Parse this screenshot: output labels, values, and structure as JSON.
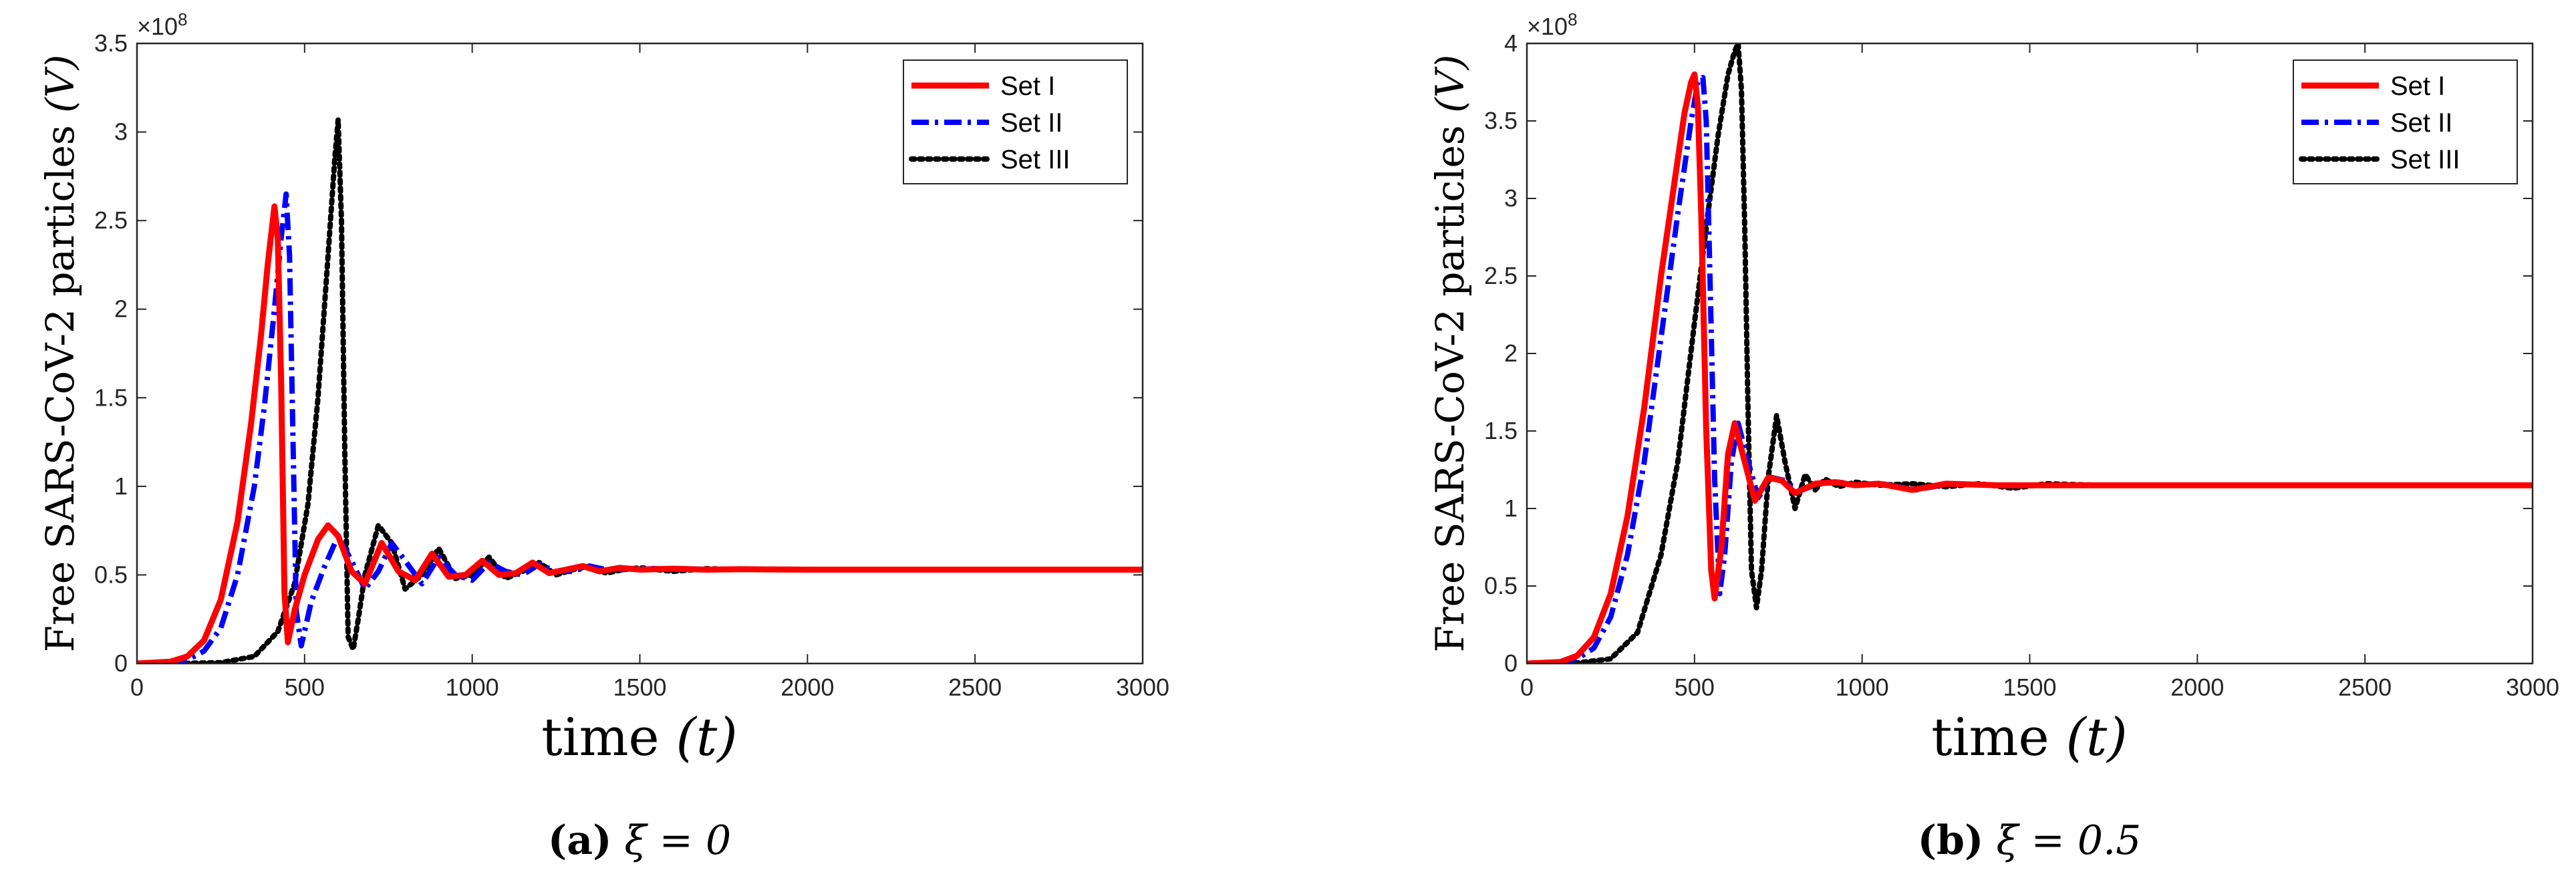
{
  "chart_data": [
    {
      "type": "line",
      "panel": "a",
      "xlabel_text": "time",
      "xlabel_var": "(t)",
      "ylabel_text": "Free SARS-CoV-2 particles",
      "ylabel_var": "(V)",
      "xlim": [
        0,
        3000
      ],
      "ylim": [
        0,
        3.5
      ],
      "xticks": [
        0,
        500,
        1000,
        1500,
        2000,
        2500,
        3000
      ],
      "yticks": [
        0,
        0.5,
        1,
        1.5,
        2,
        2.5,
        3,
        3.5
      ],
      "yticklabels": [
        "0",
        "0.5",
        "1",
        "1.5",
        "2",
        "2.5",
        "3",
        "3.5"
      ],
      "y_multiplier": "×10",
      "y_exponent": "8",
      "legend_position": "top-right",
      "caption_label": "(a)",
      "caption_expr": "ξ = 0",
      "series": [
        {
          "name": "Set I",
          "color": "#ff0000",
          "style": "solid",
          "x": [
            0,
            100,
            150,
            200,
            250,
            300,
            340,
            370,
            390,
            410,
            420,
            430,
            440,
            450,
            470,
            500,
            540,
            570,
            600,
            640,
            680,
            730,
            780,
            830,
            880,
            930,
            980,
            1030,
            1080,
            1130,
            1180,
            1230,
            1280,
            1330,
            1380,
            1440,
            1500,
            1600,
            1700,
            1800,
            2000,
            2500,
            3000
          ],
          "values": [
            0.0,
            0.01,
            0.04,
            0.13,
            0.36,
            0.8,
            1.35,
            1.85,
            2.25,
            2.58,
            2.4,
            1.6,
            0.4,
            0.12,
            0.3,
            0.5,
            0.7,
            0.78,
            0.72,
            0.52,
            0.45,
            0.68,
            0.52,
            0.47,
            0.62,
            0.49,
            0.5,
            0.58,
            0.5,
            0.51,
            0.57,
            0.51,
            0.53,
            0.55,
            0.52,
            0.54,
            0.53,
            0.535,
            0.53,
            0.532,
            0.53,
            0.53,
            0.53
          ]
        },
        {
          "name": "Set II",
          "color": "#0000ff",
          "style": "dashdot",
          "x": [
            0,
            100,
            150,
            200,
            250,
            300,
            350,
            380,
            410,
            430,
            445,
            455,
            465,
            475,
            490,
            520,
            560,
            600,
            640,
            680,
            720,
            760,
            800,
            850,
            900,
            950,
            1000,
            1050,
            1100,
            1150,
            1200,
            1250,
            1300,
            1350,
            1400,
            1450,
            1500,
            1600,
            1700,
            1800,
            2000,
            2500,
            3000
          ],
          "values": [
            0.0,
            0.005,
            0.02,
            0.07,
            0.2,
            0.5,
            1.0,
            1.45,
            2.0,
            2.4,
            2.65,
            2.3,
            1.3,
            0.3,
            0.1,
            0.35,
            0.55,
            0.72,
            0.58,
            0.42,
            0.52,
            0.68,
            0.58,
            0.45,
            0.6,
            0.5,
            0.47,
            0.57,
            0.52,
            0.5,
            0.56,
            0.52,
            0.52,
            0.55,
            0.53,
            0.53,
            0.54,
            0.53,
            0.532,
            0.53,
            0.53,
            0.53,
            0.53
          ]
        },
        {
          "name": "Set III",
          "color": "#000000",
          "style": "dotted",
          "x": [
            0,
            150,
            250,
            350,
            420,
            470,
            510,
            540,
            570,
            590,
            600,
            610,
            620,
            630,
            645,
            660,
            680,
            720,
            760,
            800,
            850,
            900,
            950,
            1000,
            1050,
            1100,
            1150,
            1200,
            1250,
            1300,
            1350,
            1400,
            1450,
            1500,
            1600,
            1700,
            1800,
            2000,
            2500,
            3000
          ],
          "values": [
            0.0,
            0.001,
            0.005,
            0.04,
            0.18,
            0.45,
            0.9,
            1.5,
            2.3,
            2.85,
            3.07,
            2.5,
            1.2,
            0.15,
            0.08,
            0.25,
            0.5,
            0.78,
            0.68,
            0.42,
            0.5,
            0.65,
            0.48,
            0.5,
            0.6,
            0.48,
            0.52,
            0.57,
            0.5,
            0.53,
            0.55,
            0.51,
            0.53,
            0.54,
            0.52,
            0.535,
            0.53,
            0.53,
            0.53,
            0.53
          ]
        }
      ]
    },
    {
      "type": "line",
      "panel": "b",
      "xlabel_text": "time",
      "xlabel_var": "(t)",
      "ylabel_text": "Free SARS-CoV-2 particles",
      "ylabel_var": "(V)",
      "xlim": [
        0,
        3000
      ],
      "ylim": [
        0,
        4
      ],
      "xticks": [
        0,
        500,
        1000,
        1500,
        2000,
        2500,
        3000
      ],
      "yticks": [
        0,
        0.5,
        1,
        1.5,
        2,
        2.5,
        3,
        3.5,
        4
      ],
      "yticklabels": [
        "0",
        "0.5",
        "1",
        "1.5",
        "2",
        "2.5",
        "3",
        "3.5",
        "4"
      ],
      "y_multiplier": "×10",
      "y_exponent": "8",
      "legend_position": "top-right",
      "caption_label": "(b)",
      "caption_expr": "ξ = 0.5",
      "series": [
        {
          "name": "Set I",
          "color": "#ff0000",
          "style": "solid",
          "x": [
            0,
            100,
            150,
            200,
            250,
            300,
            350,
            400,
            440,
            470,
            490,
            500,
            510,
            520,
            535,
            550,
            560,
            580,
            600,
            620,
            650,
            680,
            720,
            760,
            800,
            860,
            920,
            980,
            1050,
            1150,
            1250,
            1400,
            1600,
            2000,
            2500,
            3000
          ],
          "values": [
            0.0,
            0.01,
            0.05,
            0.17,
            0.45,
            0.95,
            1.65,
            2.5,
            3.1,
            3.55,
            3.75,
            3.8,
            3.6,
            2.9,
            1.5,
            0.6,
            0.42,
            0.75,
            1.35,
            1.55,
            1.3,
            1.05,
            1.2,
            1.18,
            1.1,
            1.16,
            1.17,
            1.15,
            1.16,
            1.12,
            1.16,
            1.15,
            1.15,
            1.15,
            1.15,
            1.15
          ]
        },
        {
          "name": "Set II",
          "color": "#0000ff",
          "style": "dashdot",
          "x": [
            0,
            100,
            150,
            200,
            250,
            300,
            350,
            400,
            450,
            490,
            510,
            525,
            535,
            545,
            560,
            575,
            590,
            610,
            630,
            660,
            690,
            730,
            770,
            810,
            870,
            930,
            990,
            1060,
            1160,
            1260,
            1400,
            1600,
            2000,
            2500,
            3000
          ],
          "values": [
            0.0,
            0.006,
            0.03,
            0.1,
            0.3,
            0.7,
            1.3,
            2.1,
            2.9,
            3.5,
            3.75,
            3.78,
            3.5,
            2.6,
            1.2,
            0.45,
            0.7,
            1.3,
            1.55,
            1.3,
            1.07,
            1.2,
            1.18,
            1.11,
            1.16,
            1.17,
            1.15,
            1.16,
            1.12,
            1.16,
            1.15,
            1.15,
            1.15,
            1.15,
            1.15
          ]
        },
        {
          "name": "Set III",
          "color": "#000000",
          "style": "dotted",
          "x": [
            0,
            150,
            250,
            330,
            400,
            450,
            500,
            540,
            570,
            600,
            620,
            630,
            640,
            650,
            660,
            670,
            685,
            700,
            720,
            745,
            770,
            800,
            830,
            860,
            890,
            930,
            980,
            1050,
            1150,
            1250,
            1350,
            1450,
            1550,
            1700,
            2000,
            2500,
            3000
          ],
          "values": [
            0.0,
            0.004,
            0.03,
            0.2,
            0.7,
            1.3,
            2.2,
            2.9,
            3.4,
            3.8,
            3.95,
            4.0,
            3.7,
            2.8,
            1.6,
            0.6,
            0.36,
            0.6,
            1.2,
            1.6,
            1.3,
            1.0,
            1.22,
            1.12,
            1.19,
            1.14,
            1.17,
            1.15,
            1.16,
            1.14,
            1.16,
            1.13,
            1.16,
            1.15,
            1.15,
            1.15,
            1.15
          ]
        }
      ]
    }
  ]
}
